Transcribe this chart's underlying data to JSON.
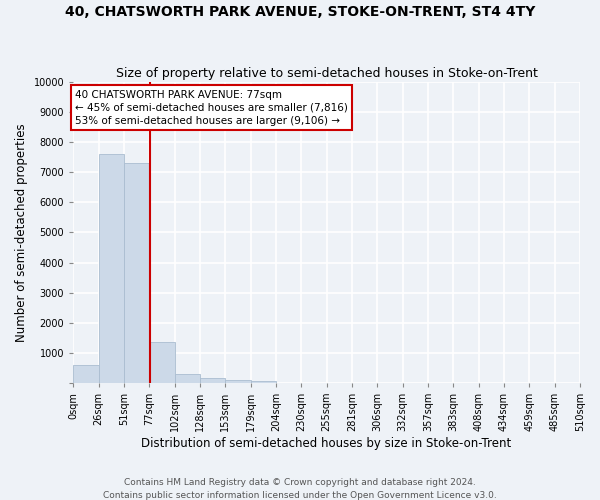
{
  "title": "40, CHATSWORTH PARK AVENUE, STOKE-ON-TRENT, ST4 4TY",
  "subtitle": "Size of property relative to semi-detached houses in Stoke-on-Trent",
  "xlabel": "Distribution of semi-detached houses by size in Stoke-on-Trent",
  "ylabel": "Number of semi-detached properties",
  "bar_left_edges": [
    0,
    25.5,
    51,
    76.5,
    102,
    127.5,
    153,
    178.5,
    204,
    229.5,
    255,
    280.5,
    306,
    331.5,
    357,
    382.5,
    408,
    433.5,
    459,
    484.5
  ],
  "bar_heights": [
    600,
    7600,
    7300,
    1350,
    300,
    150,
    100,
    80,
    0,
    0,
    0,
    0,
    0,
    0,
    0,
    0,
    0,
    0,
    0,
    0
  ],
  "bar_width": 25.5,
  "bar_color": "#ccd9e8",
  "bar_edge_color": "#aabdd0",
  "tick_labels": [
    "0sqm",
    "26sqm",
    "51sqm",
    "77sqm",
    "102sqm",
    "128sqm",
    "153sqm",
    "179sqm",
    "204sqm",
    "230sqm",
    "255sqm",
    "281sqm",
    "306sqm",
    "332sqm",
    "357sqm",
    "383sqm",
    "408sqm",
    "434sqm",
    "459sqm",
    "485sqm",
    "510sqm"
  ],
  "tick_positions": [
    0,
    25.5,
    51,
    76.5,
    102,
    127.5,
    153,
    178.5,
    204,
    229.5,
    255,
    280.5,
    306,
    331.5,
    357,
    382.5,
    408,
    433.5,
    459,
    484.5,
    510
  ],
  "ylim": [
    0,
    10000
  ],
  "yticks": [
    0,
    1000,
    2000,
    3000,
    4000,
    5000,
    6000,
    7000,
    8000,
    9000,
    10000
  ],
  "vline_x": 77,
  "vline_color": "#cc0000",
  "annotation_title": "40 CHATSWORTH PARK AVENUE: 77sqm",
  "annotation_line1": "← 45% of semi-detached houses are smaller (7,816)",
  "annotation_line2": "53% of semi-detached houses are larger (9,106) →",
  "annotation_box_facecolor": "#ffffff",
  "annotation_box_edgecolor": "#cc0000",
  "footer_line1": "Contains HM Land Registry data © Crown copyright and database right 2024.",
  "footer_line2": "Contains public sector information licensed under the Open Government Licence v3.0.",
  "bg_color": "#eef2f7",
  "plot_bg_color": "#eef2f7",
  "grid_color": "#ffffff",
  "title_fontsize": 10,
  "subtitle_fontsize": 9,
  "xlabel_fontsize": 8.5,
  "ylabel_fontsize": 8.5,
  "tick_fontsize": 7,
  "annotation_fontsize": 7.5,
  "footer_fontsize": 6.5
}
